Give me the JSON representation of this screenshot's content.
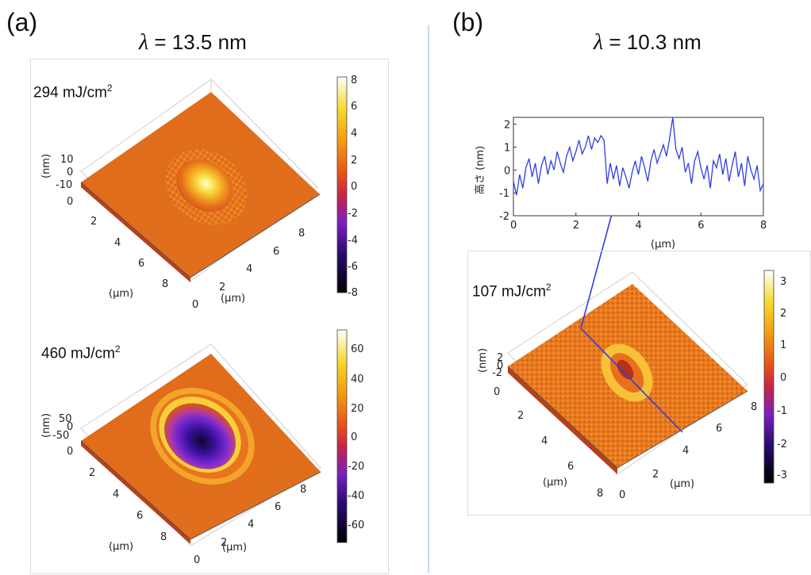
{
  "panel_a": {
    "label": "(a)",
    "wavelength": "13.5 nm",
    "lambda_symbol": "λ",
    "plots": [
      {
        "fluence": "294 mJ/cm",
        "fluence_sup": "2",
        "z_axis_label": "(nm)",
        "z_ticks": [
          "10",
          "0",
          "-10"
        ],
        "axis_unit_label": "(µm)",
        "x_ticks": [
          "0",
          "2",
          "4",
          "6",
          "8"
        ],
        "y_ticks": [
          "0",
          "2",
          "4",
          "6",
          "8"
        ],
        "colorbar_ticks": [
          "8",
          "6",
          "4",
          "2",
          "0",
          "-2",
          "-4",
          "-6",
          "-8"
        ],
        "colorbar_range": [
          -8,
          8
        ],
        "surface_feature": "bump"
      },
      {
        "fluence": "460 mJ/cm",
        "fluence_sup": "2",
        "z_axis_label": "(nm)",
        "z_ticks": [
          "50",
          "0",
          "-50"
        ],
        "axis_unit_label": "(µm)",
        "x_ticks": [
          "0",
          "2",
          "4",
          "6",
          "8"
        ],
        "y_ticks": [
          "0",
          "2",
          "4",
          "6",
          "8"
        ],
        "colorbar_ticks": [
          "60",
          "40",
          "20",
          "0",
          "-20",
          "-40",
          "-60"
        ],
        "colorbar_range": [
          -70,
          70
        ],
        "surface_feature": "crater"
      }
    ]
  },
  "panel_b": {
    "label": "(b)",
    "wavelength": "10.3 nm",
    "lambda_symbol": "λ",
    "profile": {
      "ylabel": "高さ (nm)",
      "xlabel": "(µm)",
      "x_ticks": [
        "0",
        "2",
        "4",
        "6",
        "8"
      ],
      "y_ticks": [
        "2",
        "1",
        "0",
        "-1",
        "-2"
      ],
      "line_color": "#2f3ee0"
    },
    "plot": {
      "fluence": "107 mJ/cm",
      "fluence_sup": "2",
      "z_axis_label": "(nm)",
      "z_ticks": [
        "2",
        "0",
        "-2"
      ],
      "axis_unit_label": "(µm)",
      "x_ticks": [
        "0",
        "2",
        "4",
        "6",
        "8"
      ],
      "y_ticks": [
        "0",
        "2",
        "4",
        "6",
        "8"
      ],
      "colorbar_ticks": [
        "3",
        "2",
        "1",
        "0",
        "-1",
        "-2",
        "-3"
      ],
      "colorbar_range": [
        -3.3,
        3.3
      ],
      "surface_feature": "ring"
    }
  },
  "chart_data": {
    "type": "line",
    "title": "",
    "xlabel": "(µm)",
    "ylabel": "高さ (nm)",
    "xlim": [
      0,
      8
    ],
    "ylim": [
      -2,
      2.3
    ],
    "series": [
      {
        "x": [
          0,
          0.1,
          0.2,
          0.3,
          0.4,
          0.5,
          0.6,
          0.7,
          0.8,
          0.9,
          1.0,
          1.1,
          1.2,
          1.3,
          1.4,
          1.5,
          1.6,
          1.7,
          1.8,
          1.9,
          2.0,
          2.1,
          2.2,
          2.3,
          2.4,
          2.5,
          2.6,
          2.7,
          2.8,
          2.9,
          3.0,
          3.1,
          3.2,
          3.3,
          3.4,
          3.5,
          3.6,
          3.7,
          3.8,
          3.9,
          4.0,
          4.1,
          4.2,
          4.3,
          4.4,
          4.5,
          4.6,
          4.7,
          4.8,
          4.9,
          5.0,
          5.1,
          5.2,
          5.3,
          5.4,
          5.5,
          5.6,
          5.7,
          5.8,
          5.9,
          6.0,
          6.1,
          6.2,
          6.3,
          6.4,
          6.5,
          6.6,
          6.7,
          6.8,
          6.9,
          7.0,
          7.1,
          7.2,
          7.3,
          7.4,
          7.5,
          7.6,
          7.7,
          7.8,
          7.9,
          8.0
        ],
        "y": [
          -0.5,
          -1.1,
          -0.2,
          -0.8,
          0.1,
          0.5,
          -0.3,
          0.3,
          -0.6,
          0.2,
          0.6,
          -0.2,
          0.4,
          0.0,
          0.8,
          0.3,
          -0.1,
          0.6,
          1.0,
          0.4,
          0.8,
          1.3,
          0.7,
          1.0,
          1.5,
          0.9,
          1.4,
          1.2,
          1.5,
          1.3,
          -0.6,
          0.3,
          -0.4,
          0.2,
          -0.7,
          0.1,
          -0.3,
          -0.8,
          -0.1,
          0.4,
          -0.2,
          0.6,
          0.1,
          -0.5,
          0.4,
          0.9,
          0.3,
          0.7,
          1.1,
          0.6,
          1.4,
          2.3,
          0.9,
          0.5,
          1.0,
          -0.1,
          0.3,
          -0.6,
          0.4,
          0.8,
          0.1,
          -0.4,
          0.2,
          -0.8,
          0.4,
          0.1,
          0.7,
          -0.2,
          0.5,
          -0.5,
          0.2,
          0.8,
          -0.3,
          0.3,
          -0.7,
          0.6,
          0.0,
          -0.4,
          0.2,
          -0.9,
          -0.6
        ]
      }
    ]
  }
}
